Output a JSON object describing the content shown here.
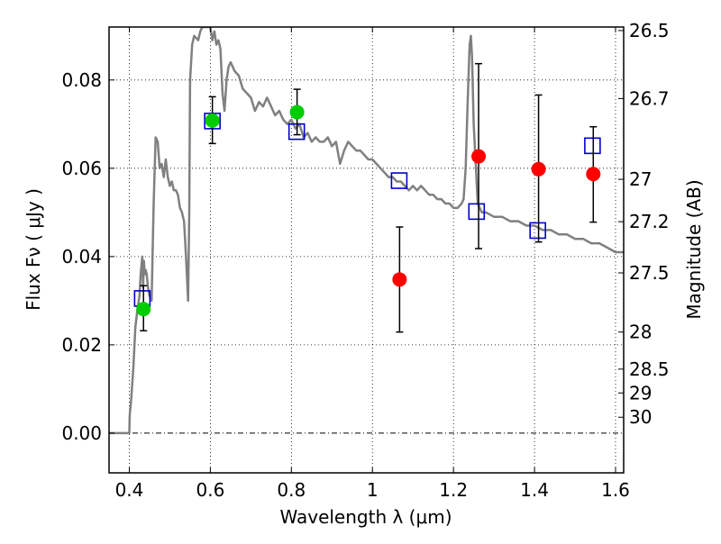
{
  "chart_data": {
    "type": "scatter",
    "title": "",
    "xlabel": "Wavelength  λ (μm)",
    "ylabel": "Flux  Fν  ( μJy )",
    "ylabel_right": "Magnitude (AB)",
    "xlim": [
      0.35,
      1.62
    ],
    "ylim": [
      -0.009,
      0.092
    ],
    "grid": true,
    "legend": "none",
    "x_ticks": [
      {
        "value": 0.4,
        "label": "0.4"
      },
      {
        "value": 0.6,
        "label": "0.6"
      },
      {
        "value": 0.8,
        "label": "0.8"
      },
      {
        "value": 1.0,
        "label": "1"
      },
      {
        "value": 1.2,
        "label": "1.2"
      },
      {
        "value": 1.4,
        "label": "1.4"
      },
      {
        "value": 1.6,
        "label": "1.6"
      }
    ],
    "y_ticks": [
      {
        "value": 0.0,
        "label": "0.00"
      },
      {
        "value": 0.02,
        "label": "0.02"
      },
      {
        "value": 0.04,
        "label": "0.04"
      },
      {
        "value": 0.06,
        "label": "0.06"
      },
      {
        "value": 0.08,
        "label": "0.08"
      }
    ],
    "right_ticks": [
      {
        "label": "26.5",
        "flux": 0.0912
      },
      {
        "label": "26.7",
        "flux": 0.0758
      },
      {
        "label": "27",
        "flux": 0.0575
      },
      {
        "label": "27.2",
        "flux": 0.0479
      },
      {
        "label": "27.5",
        "flux": 0.0363
      },
      {
        "label": "28",
        "flux": 0.0229
      },
      {
        "label": "28.5",
        "flux": 0.0145
      },
      {
        "label": "29",
        "flux": 0.0091
      },
      {
        "label": "30",
        "flux": 0.0036
      }
    ],
    "series": [
      {
        "kind": "line",
        "color": "#808080",
        "points": [
          [
            0.35,
            0.0
          ],
          [
            0.4,
            0.0
          ],
          [
            0.401,
            0.004
          ],
          [
            0.405,
            0.008
          ],
          [
            0.41,
            0.015
          ],
          [
            0.415,
            0.024
          ],
          [
            0.42,
            0.028
          ],
          [
            0.425,
            0.031
          ],
          [
            0.428,
            0.036
          ],
          [
            0.43,
            0.038
          ],
          [
            0.432,
            0.04
          ],
          [
            0.434,
            0.033
          ],
          [
            0.436,
            0.039
          ],
          [
            0.438,
            0.036
          ],
          [
            0.44,
            0.037
          ],
          [
            0.443,
            0.036
          ],
          [
            0.446,
            0.033
          ],
          [
            0.45,
            0.031
          ],
          [
            0.455,
            0.03
          ],
          [
            0.46,
            0.052
          ],
          [
            0.465,
            0.067
          ],
          [
            0.47,
            0.066
          ],
          [
            0.475,
            0.06
          ],
          [
            0.48,
            0.061
          ],
          [
            0.485,
            0.058
          ],
          [
            0.49,
            0.062
          ],
          [
            0.495,
            0.058
          ],
          [
            0.5,
            0.056
          ],
          [
            0.505,
            0.057
          ],
          [
            0.51,
            0.055
          ],
          [
            0.515,
            0.055
          ],
          [
            0.52,
            0.054
          ],
          [
            0.525,
            0.051
          ],
          [
            0.53,
            0.05
          ],
          [
            0.535,
            0.048
          ],
          [
            0.54,
            0.04
          ],
          [
            0.545,
            0.03
          ],
          [
            0.548,
            0.05
          ],
          [
            0.55,
            0.08
          ],
          [
            0.555,
            0.088
          ],
          [
            0.56,
            0.09
          ],
          [
            0.57,
            0.089
          ],
          [
            0.575,
            0.091
          ],
          [
            0.58,
            0.092
          ],
          [
            0.59,
            0.092
          ],
          [
            0.6,
            0.092
          ],
          [
            0.605,
            0.089
          ],
          [
            0.61,
            0.091
          ],
          [
            0.615,
            0.088
          ],
          [
            0.62,
            0.089
          ],
          [
            0.625,
            0.087
          ],
          [
            0.63,
            0.077
          ],
          [
            0.635,
            0.073
          ],
          [
            0.64,
            0.08
          ],
          [
            0.645,
            0.083
          ],
          [
            0.65,
            0.084
          ],
          [
            0.66,
            0.082
          ],
          [
            0.67,
            0.081
          ],
          [
            0.68,
            0.078
          ],
          [
            0.69,
            0.077
          ],
          [
            0.7,
            0.076
          ],
          [
            0.71,
            0.073
          ],
          [
            0.72,
            0.075
          ],
          [
            0.73,
            0.074
          ],
          [
            0.74,
            0.076
          ],
          [
            0.75,
            0.074
          ],
          [
            0.76,
            0.072
          ],
          [
            0.77,
            0.073
          ],
          [
            0.78,
            0.071
          ],
          [
            0.79,
            0.07
          ],
          [
            0.8,
            0.071
          ],
          [
            0.81,
            0.069
          ],
          [
            0.82,
            0.07
          ],
          [
            0.83,
            0.067
          ],
          [
            0.84,
            0.068
          ],
          [
            0.85,
            0.066
          ],
          [
            0.86,
            0.067
          ],
          [
            0.87,
            0.066
          ],
          [
            0.88,
            0.066
          ],
          [
            0.89,
            0.067
          ],
          [
            0.9,
            0.065
          ],
          [
            0.91,
            0.066
          ],
          [
            0.92,
            0.061
          ],
          [
            0.93,
            0.064
          ],
          [
            0.94,
            0.066
          ],
          [
            0.95,
            0.065
          ],
          [
            0.96,
            0.064
          ],
          [
            0.97,
            0.064
          ],
          [
            0.98,
            0.063
          ],
          [
            0.99,
            0.062
          ],
          [
            1.0,
            0.062
          ],
          [
            1.01,
            0.061
          ],
          [
            1.02,
            0.06
          ],
          [
            1.03,
            0.059
          ],
          [
            1.04,
            0.058
          ],
          [
            1.05,
            0.058
          ],
          [
            1.06,
            0.057
          ],
          [
            1.07,
            0.057
          ],
          [
            1.08,
            0.056
          ],
          [
            1.09,
            0.055
          ],
          [
            1.1,
            0.056
          ],
          [
            1.11,
            0.055
          ],
          [
            1.12,
            0.056
          ],
          [
            1.13,
            0.055
          ],
          [
            1.14,
            0.054
          ],
          [
            1.15,
            0.054
          ],
          [
            1.16,
            0.053
          ],
          [
            1.17,
            0.053
          ],
          [
            1.18,
            0.052
          ],
          [
            1.19,
            0.052
          ],
          [
            1.2,
            0.051
          ],
          [
            1.21,
            0.051
          ],
          [
            1.22,
            0.052
          ],
          [
            1.225,
            0.053
          ],
          [
            1.23,
            0.06
          ],
          [
            1.235,
            0.075
          ],
          [
            1.24,
            0.088
          ],
          [
            1.243,
            0.09
          ],
          [
            1.246,
            0.085
          ],
          [
            1.25,
            0.07
          ],
          [
            1.26,
            0.052
          ],
          [
            1.27,
            0.05
          ],
          [
            1.28,
            0.05
          ],
          [
            1.3,
            0.049
          ],
          [
            1.32,
            0.049
          ],
          [
            1.34,
            0.048
          ],
          [
            1.36,
            0.048
          ],
          [
            1.38,
            0.047
          ],
          [
            1.4,
            0.047
          ],
          [
            1.42,
            0.046
          ],
          [
            1.44,
            0.046
          ],
          [
            1.46,
            0.045
          ],
          [
            1.48,
            0.045
          ],
          [
            1.5,
            0.044
          ],
          [
            1.52,
            0.044
          ],
          [
            1.54,
            0.043
          ],
          [
            1.56,
            0.043
          ],
          [
            1.58,
            0.042
          ],
          [
            1.6,
            0.041
          ],
          [
            1.62,
            0.041
          ]
        ]
      },
      {
        "kind": "markers",
        "marker": "square-open",
        "color": "#0000cc",
        "points": [
          [
            0.432,
            0.0305
          ],
          [
            0.605,
            0.0707
          ],
          [
            0.813,
            0.0683
          ],
          [
            1.066,
            0.0572
          ],
          [
            1.257,
            0.0502
          ],
          [
            1.408,
            0.0459
          ],
          [
            1.543,
            0.0651
          ]
        ]
      },
      {
        "kind": "markers",
        "marker": "circle",
        "color": "#00cc00",
        "points": [
          {
            "x": 0.435,
            "y": 0.0281,
            "err": [
              0.0232,
              0.0334
            ]
          },
          {
            "x": 0.605,
            "y": 0.0708,
            "err": [
              0.0656,
              0.0762
            ]
          },
          {
            "x": 0.814,
            "y": 0.0727,
            "err": [
              0.0676,
              0.0779
            ]
          }
        ]
      },
      {
        "kind": "markers",
        "marker": "circle",
        "color": "#ff0000",
        "points": [
          {
            "x": 1.067,
            "y": 0.0348,
            "err": [
              0.0229,
              0.0467
            ]
          },
          {
            "x": 1.262,
            "y": 0.0627,
            "err": [
              0.0418,
              0.0837
            ]
          },
          {
            "x": 1.41,
            "y": 0.0598,
            "err": [
              0.0433,
              0.0766
            ]
          },
          {
            "x": 1.545,
            "y": 0.0587,
            "err": [
              0.0478,
              0.0694
            ]
          }
        ]
      }
    ]
  }
}
